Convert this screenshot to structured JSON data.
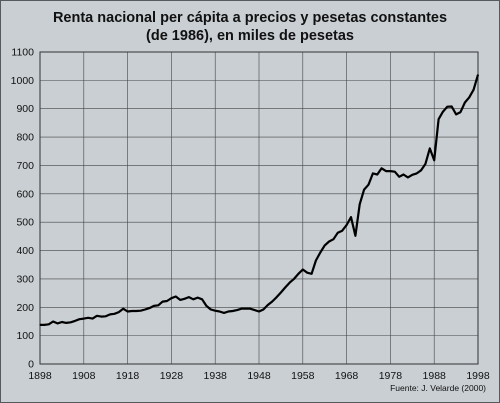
{
  "chart_data": {
    "type": "line",
    "title": "Renta nacional per cápita a precios y pesetas constantes",
    "subtitle": "(de 1986), en miles de pesetas",
    "source": "Fuente: J. Velarde (2000)",
    "xlim": [
      1898,
      1998
    ],
    "ylim": [
      0,
      1100
    ],
    "xticks": [
      1898,
      1908,
      1918,
      1928,
      1938,
      1948,
      1958,
      1968,
      1978,
      1988,
      1998
    ],
    "yticks": [
      0,
      100,
      200,
      300,
      400,
      500,
      600,
      700,
      800,
      900,
      1000,
      1100
    ],
    "grid": true,
    "series": [
      {
        "color": "#000000",
        "x": [
          1898,
          1899,
          1900,
          1901,
          1902,
          1903,
          1904,
          1905,
          1906,
          1907,
          1908,
          1909,
          1910,
          1911,
          1912,
          1913,
          1914,
          1915,
          1916,
          1917,
          1918,
          1919,
          1920,
          1921,
          1922,
          1923,
          1924,
          1925,
          1926,
          1927,
          1928,
          1929,
          1930,
          1931,
          1932,
          1933,
          1934,
          1935,
          1936,
          1937,
          1938,
          1939,
          1940,
          1941,
          1942,
          1943,
          1944,
          1945,
          1946,
          1947,
          1948,
          1949,
          1950,
          1951,
          1952,
          1953,
          1954,
          1955,
          1956,
          1957,
          1958,
          1959,
          1960,
          1961,
          1962,
          1963,
          1964,
          1965,
          1966,
          1967,
          1968,
          1969,
          1970,
          1971,
          1972,
          1973,
          1974,
          1975,
          1976,
          1977,
          1978,
          1979,
          1980,
          1981,
          1982,
          1983,
          1984,
          1985,
          1986,
          1987,
          1988,
          1989,
          1990,
          1991,
          1992,
          1993,
          1994,
          1995,
          1996,
          1997,
          1998
        ],
        "y": [
          138,
          138,
          140,
          150,
          143,
          148,
          145,
          147,
          152,
          158,
          160,
          163,
          160,
          170,
          167,
          168,
          175,
          177,
          183,
          195,
          185,
          187,
          187,
          188,
          192,
          197,
          205,
          207,
          220,
          222,
          232,
          238,
          226,
          230,
          236,
          228,
          234,
          228,
          205,
          192,
          188,
          185,
          180,
          185,
          187,
          190,
          195,
          195,
          195,
          190,
          185,
          192,
          208,
          220,
          235,
          252,
          270,
          287,
          300,
          318,
          333,
          322,
          318,
          365,
          393,
          418,
          432,
          440,
          463,
          470,
          490,
          518,
          452,
          563,
          615,
          632,
          672,
          668,
          690,
          680,
          680,
          678,
          660,
          668,
          658,
          667,
          672,
          683,
          705,
          760,
          718,
          863,
          890,
          907,
          908,
          880,
          888,
          922,
          940,
          967,
          1020
        ]
      }
    ]
  }
}
